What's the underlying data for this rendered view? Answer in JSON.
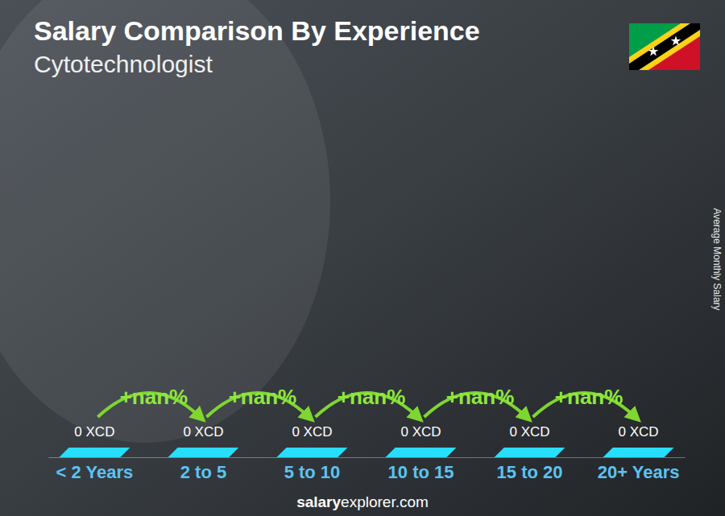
{
  "chart_data": {
    "type": "bar",
    "title": "Salary Comparison By Experience",
    "subtitle": "Cytotechnologist",
    "ylabel": "Average Monthly Salary",
    "categories": [
      "< 2 Years",
      "2 to 5",
      "5 to 10",
      "10 to 15",
      "15 to 20",
      "20+ Years"
    ],
    "values": [
      0,
      0,
      0,
      0,
      0,
      0
    ],
    "value_labels": [
      "0 XCD",
      "0 XCD",
      "0 XCD",
      "0 XCD",
      "0 XCD",
      "0 XCD"
    ],
    "data_labels": true,
    "annotations": [
      "+nan%",
      "+nan%",
      "+nan%",
      "+nan%",
      "+nan%"
    ],
    "color": "#1ea7e4",
    "tick_labels": "x",
    "source": [
      "salary",
      "explorer.com"
    ]
  }
}
